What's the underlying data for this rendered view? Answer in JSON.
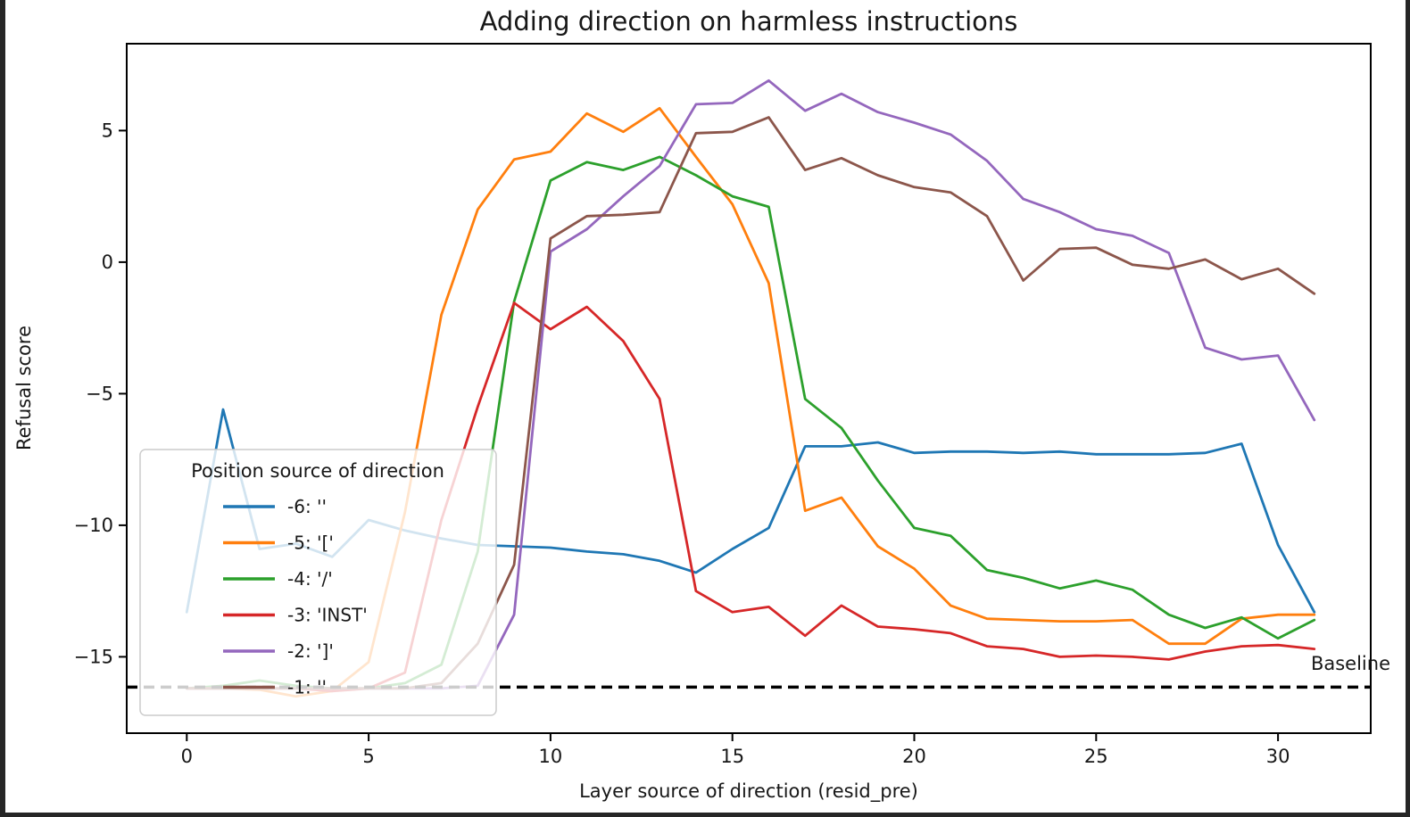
{
  "chart_data": {
    "type": "line",
    "title": "Adding direction on harmless instructions",
    "xlabel": "Layer source of direction (resid_pre)",
    "ylabel": "Refusal score",
    "legend_title": "Position source of direction",
    "legend_position": "lower left",
    "grid": false,
    "xlim": [
      -1.65,
      32.55
    ],
    "ylim": [
      -17.9,
      8.3
    ],
    "xticks": [
      0,
      5,
      10,
      15,
      20,
      25,
      30
    ],
    "yticks": [
      5,
      0,
      -5,
      -10,
      -15
    ],
    "x": [
      0,
      1,
      2,
      3,
      4,
      5,
      6,
      7,
      8,
      9,
      10,
      11,
      12,
      13,
      14,
      15,
      16,
      17,
      18,
      19,
      20,
      21,
      22,
      23,
      24,
      25,
      26,
      27,
      28,
      29,
      30,
      31
    ],
    "series": [
      {
        "name": "-6: ''",
        "color": "#1f77b4",
        "values": [
          -13.3,
          -5.6,
          -10.9,
          -10.7,
          -11.2,
          -9.8,
          -10.2,
          -10.5,
          -10.75,
          -10.8,
          -10.85,
          -11.0,
          -11.1,
          -11.35,
          -11.8,
          -10.9,
          -10.1,
          -7.0,
          -7.0,
          -6.85,
          -7.25,
          -7.2,
          -7.2,
          -7.25,
          -7.2,
          -7.3,
          -7.3,
          -7.3,
          -7.25,
          -6.9,
          -10.75,
          -13.3
        ]
      },
      {
        "name": "-5: '['",
        "color": "#ff7f0e",
        "values": [
          -16.2,
          -16.2,
          -16.25,
          -16.5,
          -16.3,
          -15.2,
          -9.5,
          -2.0,
          2.0,
          3.9,
          4.2,
          5.65,
          4.95,
          5.85,
          4.0,
          2.2,
          -0.8,
          -9.45,
          -8.95,
          -10.8,
          -11.65,
          -13.05,
          -13.55,
          -13.6,
          -13.65,
          -13.65,
          -13.6,
          -14.5,
          -14.5,
          -13.55,
          -13.4,
          -13.4
        ]
      },
      {
        "name": "-4: '/'",
        "color": "#2ca02c",
        "values": [
          -16.2,
          -16.1,
          -15.9,
          -16.1,
          -16.2,
          -16.2,
          -16.0,
          -15.3,
          -11.0,
          -1.5,
          3.1,
          3.8,
          3.5,
          4.0,
          3.3,
          2.5,
          2.1,
          -5.2,
          -6.3,
          -8.3,
          -10.1,
          -10.4,
          -11.7,
          -12.0,
          -12.4,
          -12.1,
          -12.45,
          -13.4,
          -13.9,
          -13.5,
          -14.3,
          -13.6
        ]
      },
      {
        "name": "-3: 'INST'",
        "color": "#d62728",
        "values": [
          -16.2,
          -16.2,
          -16.2,
          -16.2,
          -16.3,
          -16.2,
          -15.6,
          -9.8,
          -5.5,
          -1.55,
          -2.55,
          -1.7,
          -3.0,
          -5.2,
          -12.5,
          -13.3,
          -13.1,
          -14.2,
          -13.05,
          -13.85,
          -13.95,
          -14.1,
          -14.6,
          -14.7,
          -15.0,
          -14.95,
          -15.0,
          -15.1,
          -14.8,
          -14.6,
          -14.55,
          -14.7
        ]
      },
      {
        "name": "-2: ']'",
        "color": "#9467bd",
        "values": [
          -16.2,
          -16.2,
          -16.2,
          -16.2,
          -16.2,
          -16.2,
          -16.2,
          -16.2,
          -16.1,
          -13.4,
          0.4,
          1.25,
          2.5,
          3.65,
          6.0,
          6.05,
          6.9,
          5.75,
          6.4,
          5.7,
          5.3,
          4.85,
          3.85,
          2.4,
          1.9,
          1.25,
          1.0,
          0.35,
          -3.25,
          -3.7,
          -3.55,
          -6.0
        ]
      },
      {
        "name": "-1: ''",
        "color": "#8c564b",
        "values": [
          -16.2,
          -16.2,
          -16.2,
          -16.2,
          -16.2,
          -16.2,
          -16.2,
          -16.0,
          -14.5,
          -11.5,
          0.9,
          1.75,
          1.8,
          1.9,
          4.9,
          4.95,
          5.5,
          3.5,
          3.95,
          3.3,
          2.85,
          2.65,
          1.75,
          -0.7,
          0.5,
          0.55,
          -0.1,
          -0.25,
          0.1,
          -0.65,
          -0.25,
          -1.2
        ]
      }
    ],
    "baseline": {
      "label": "Baseline",
      "value": -16.15,
      "style": "dashed",
      "color": "#000000"
    }
  }
}
